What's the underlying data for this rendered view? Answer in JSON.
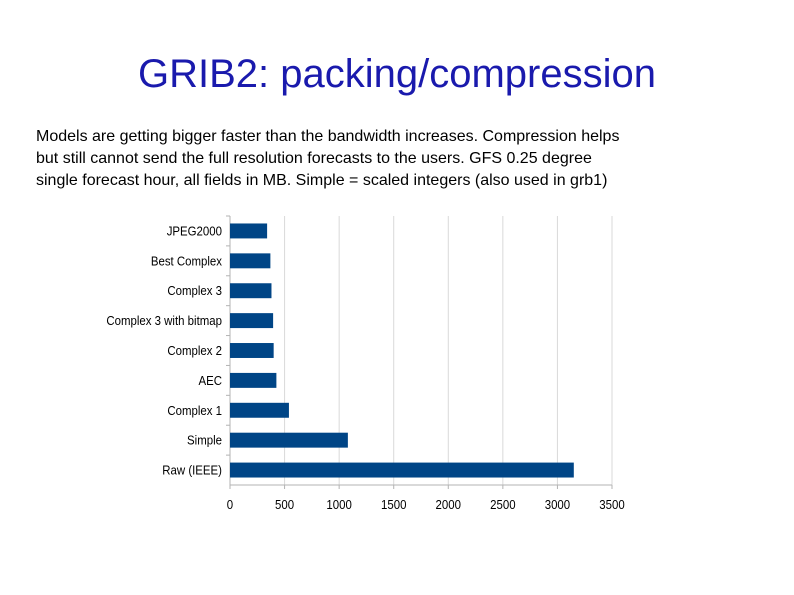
{
  "slide": {
    "title": "GRIB2: packing/compression",
    "body_lines": [
      "Models are getting bigger faster than the bandwidth increases.  Compression helps",
      "but still cannot send the full resolution forecasts to the users.  GFS 0.25 degree",
      "single forecast hour, all fields in MB.  Simple = scaled integers (also used in grb1)"
    ]
  },
  "colors": {
    "title": "#1a1aad",
    "bar": "#004586",
    "grid": "#d9d9d9",
    "axis": "#b3b3b3",
    "label": "#000000"
  },
  "chart_data": {
    "type": "bar",
    "orientation": "horizontal",
    "categories": [
      "JPEG2000",
      "Best Complex",
      "Complex 3",
      "Complex 3 with bitmap",
      "Complex 2",
      "AEC",
      "Complex 1",
      "Simple",
      "Raw (IEEE)"
    ],
    "values": [
      340,
      370,
      380,
      395,
      400,
      425,
      540,
      1080,
      3150
    ],
    "xlim": [
      0,
      3500
    ],
    "xticks": [
      0,
      500,
      1000,
      1500,
      2000,
      2500,
      3000,
      3500
    ],
    "title": "",
    "xlabel": "",
    "ylabel": "",
    "grid": true,
    "legend": "none"
  }
}
